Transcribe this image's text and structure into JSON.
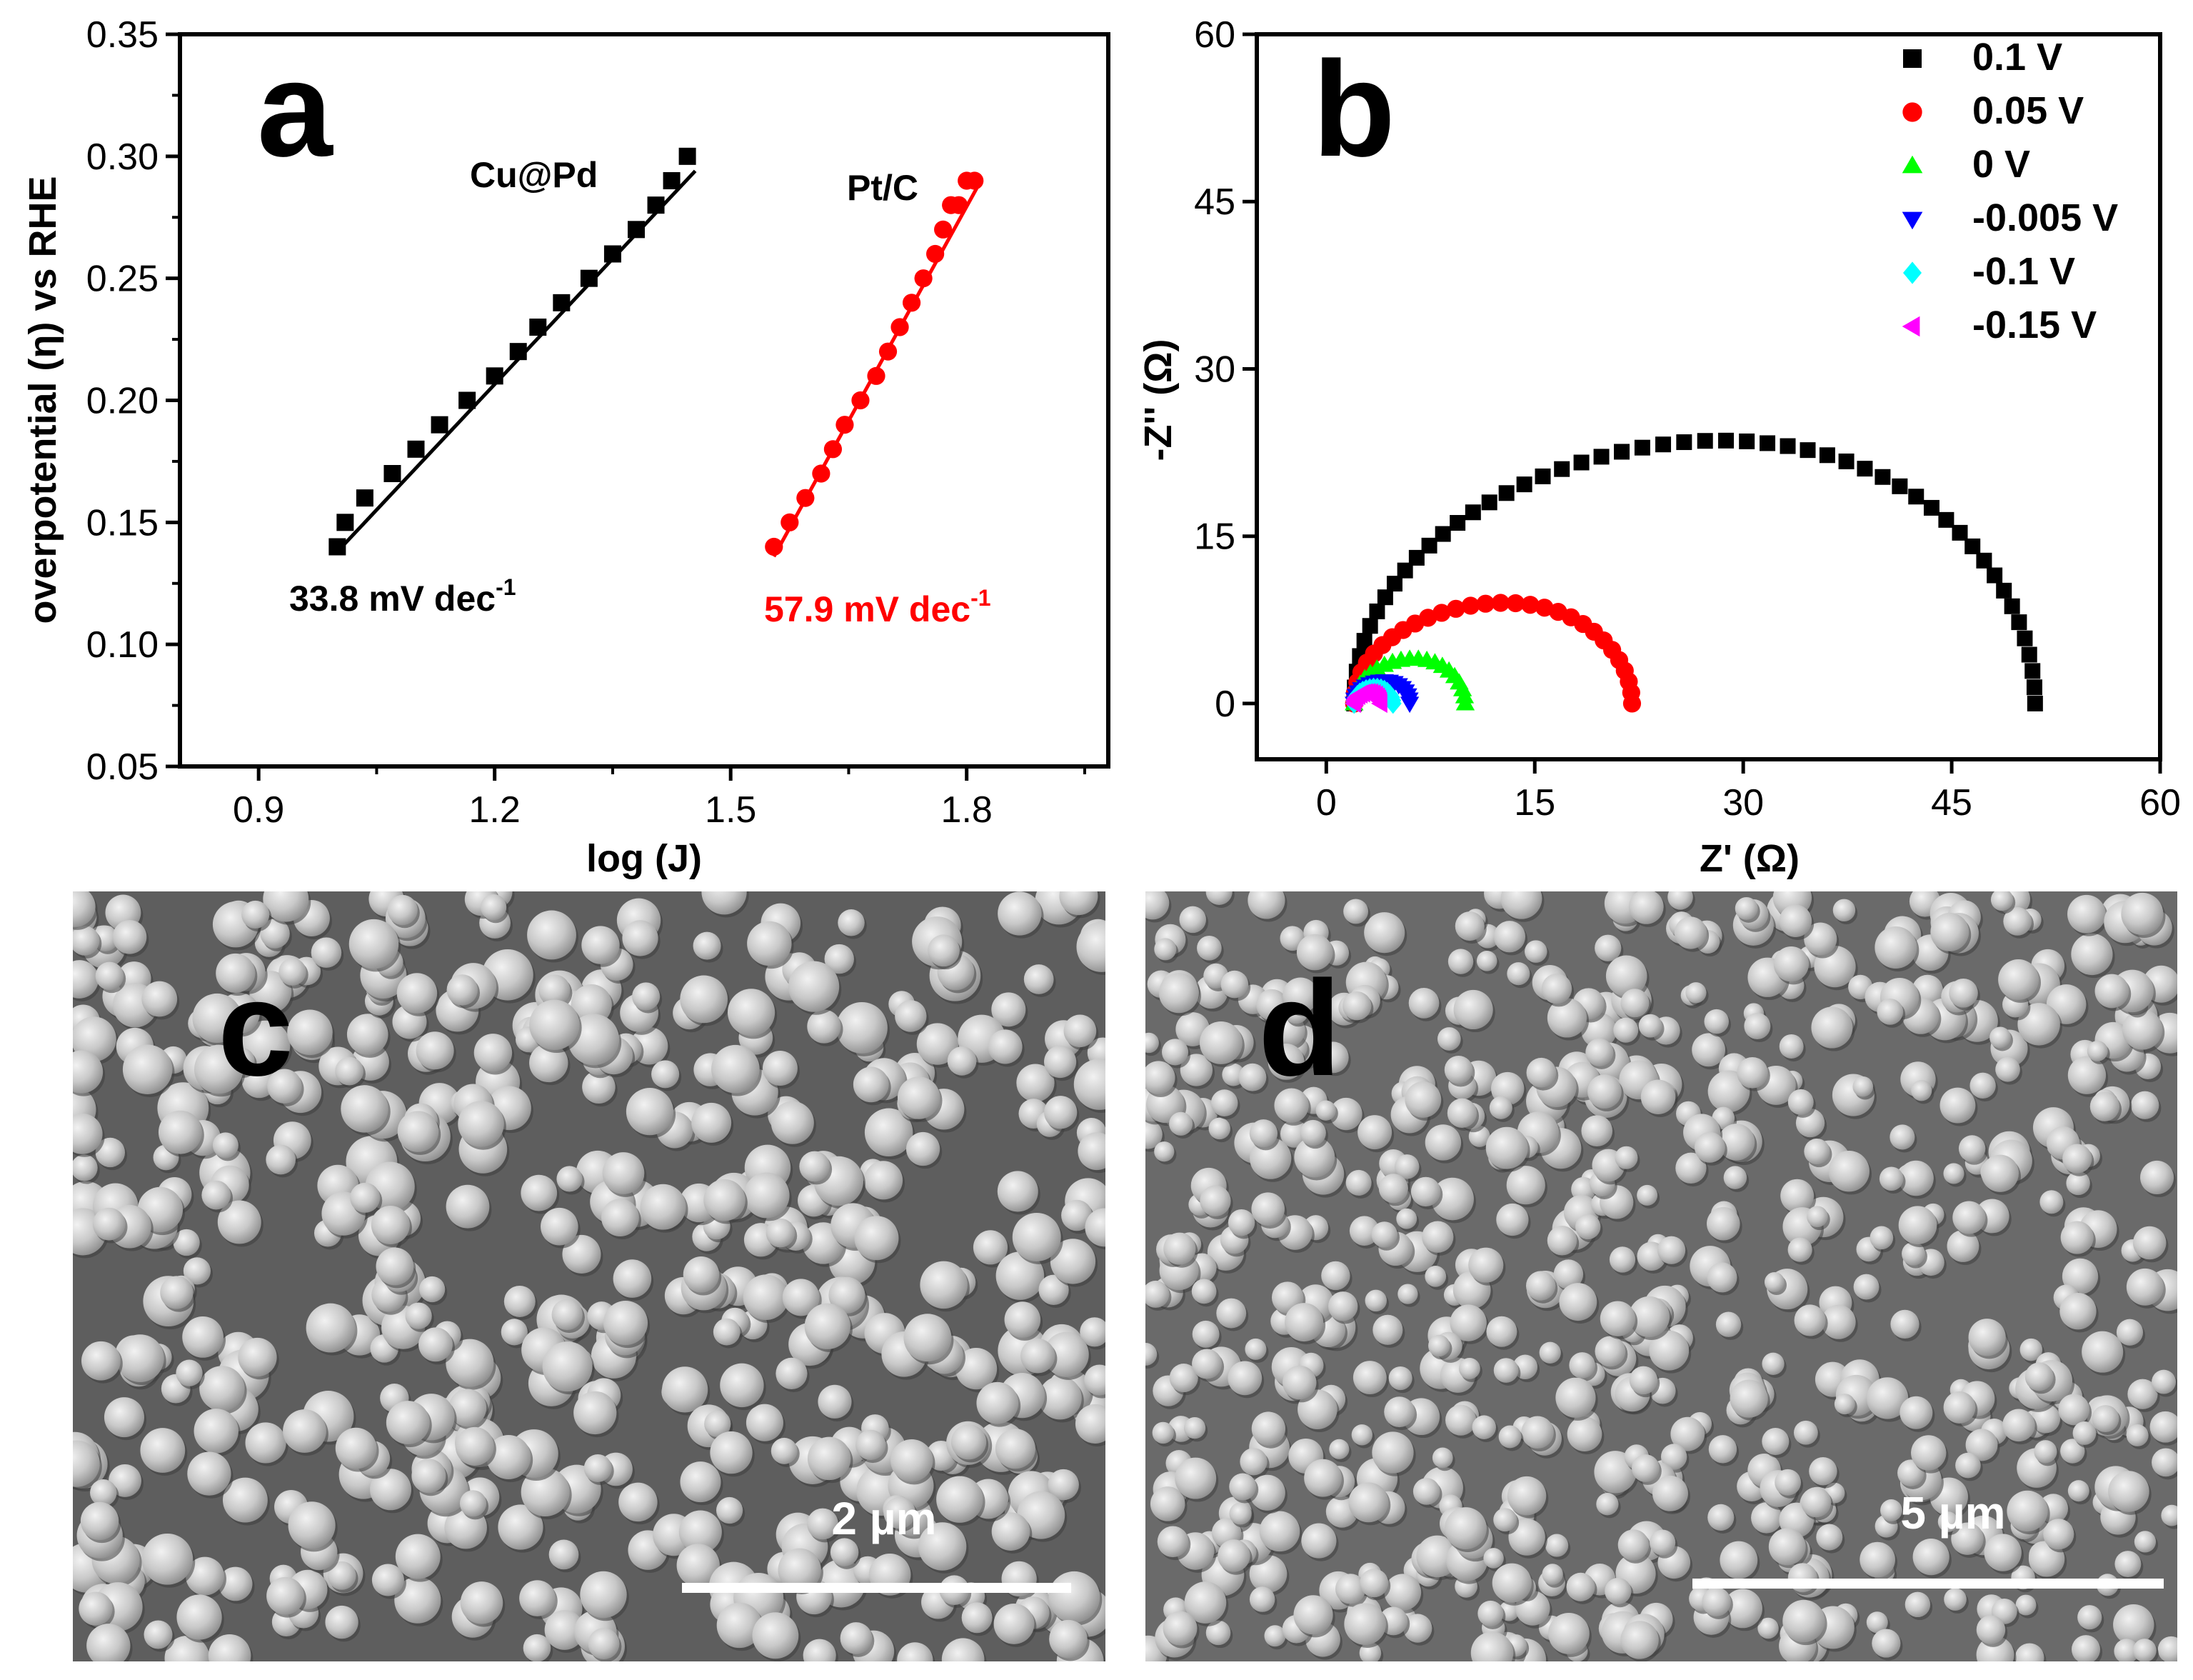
{
  "panels": {
    "a": {
      "letter": "a"
    },
    "b": {
      "letter": "b"
    },
    "c": {
      "letter": "c",
      "scale_bar": "2 µm"
    },
    "d": {
      "letter": "d",
      "scale_bar": "5 µm"
    }
  },
  "chart_data": [
    {
      "panel": "a",
      "type": "scatter",
      "xlabel": "log (J)",
      "ylabel": "overpotential (η) vs RHE",
      "xlim": [
        0.8,
        1.98
      ],
      "ylim": [
        0.05,
        0.35
      ],
      "xticks": [
        "0.9",
        "1.2",
        "1.5",
        "1.8"
      ],
      "yticks": [
        "0.05",
        "0.10",
        "0.15",
        "0.20",
        "0.25",
        "0.30",
        "0.35"
      ],
      "grid": false,
      "series": [
        {
          "name": "Cu@Pd",
          "color": "#000000",
          "marker": "square",
          "x": [
            1.0,
            1.01,
            1.035,
            1.07,
            1.1,
            1.13,
            1.165,
            1.2,
            1.23,
            1.255,
            1.285,
            1.32,
            1.35,
            1.38,
            1.405,
            1.425,
            1.445
          ],
          "y": [
            0.14,
            0.15,
            0.16,
            0.17,
            0.18,
            0.19,
            0.2,
            0.21,
            0.22,
            0.23,
            0.24,
            0.25,
            0.26,
            0.27,
            0.28,
            0.29,
            0.3
          ],
          "fit": {
            "x": [
              1.0,
              1.455
            ],
            "y": [
              0.138,
              0.294
            ]
          },
          "slope_label": "33.8 mV dec",
          "slope_sup": "-1"
        },
        {
          "name": "Pt/C",
          "color": "#ff0000",
          "marker": "circle",
          "x": [
            1.555,
            1.575,
            1.595,
            1.615,
            1.63,
            1.645,
            1.665,
            1.685,
            1.7,
            1.715,
            1.73,
            1.745,
            1.76,
            1.77,
            1.78,
            1.79,
            1.8,
            1.81
          ],
          "y": [
            0.14,
            0.15,
            0.16,
            0.17,
            0.18,
            0.19,
            0.2,
            0.21,
            0.22,
            0.23,
            0.24,
            0.25,
            0.26,
            0.27,
            0.28,
            0.28,
            0.29,
            0.29
          ],
          "fit": {
            "x": [
              1.555,
              1.818
            ],
            "y": [
              0.136,
              0.29
            ]
          },
          "slope_label": "57.9 mV dec",
          "slope_sup": "-1"
        }
      ]
    },
    {
      "panel": "b",
      "type": "scatter",
      "xlabel": "Z' (Ω)",
      "ylabel": "-Z'' (Ω)",
      "xlim": [
        -5,
        60
      ],
      "ylim": [
        -5,
        60
      ],
      "xticks": [
        0,
        15,
        30,
        45,
        60
      ],
      "yticks": [
        0,
        15,
        30,
        45,
        60
      ],
      "grid": false,
      "legend_position": "top-right",
      "series": [
        {
          "name": "0.1 V",
          "color": "#000000",
          "marker": "square",
          "arc": {
            "x_start": 2.0,
            "x_end": 51.0,
            "peak": 23.5
          }
        },
        {
          "name": "0.05 V",
          "color": "#ff0000",
          "marker": "circle",
          "arc": {
            "x_start": 2.0,
            "x_end": 22.0,
            "peak": 9.0
          }
        },
        {
          "name": "0 V",
          "color": "#00ff00",
          "marker": "triangle-up",
          "arc": {
            "x_start": 2.0,
            "x_end": 10.0,
            "peak": 4.0
          }
        },
        {
          "name": "-0.005 V",
          "color": "#0000ff",
          "marker": "triangle-down",
          "arc": {
            "x_start": 2.0,
            "x_end": 6.0,
            "peak": 2.0
          }
        },
        {
          "name": "-0.1 V",
          "color": "#00ffff",
          "marker": "diamond",
          "arc": {
            "x_start": 2.0,
            "x_end": 4.8,
            "peak": 1.4
          }
        },
        {
          "name": "-0.15 V",
          "color": "#ff00ff",
          "marker": "triangle-left",
          "arc": {
            "x_start": 2.0,
            "x_end": 3.9,
            "peak": 1.0
          }
        }
      ]
    }
  ]
}
